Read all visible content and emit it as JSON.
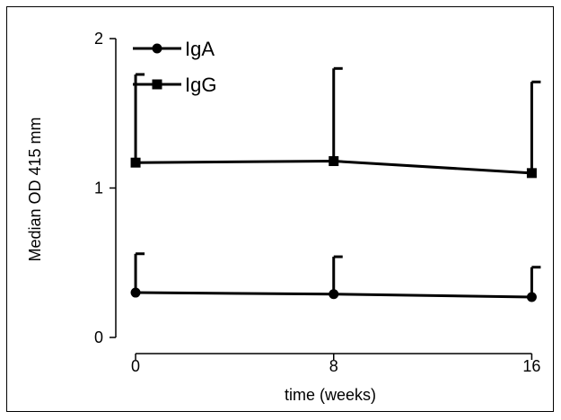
{
  "chart_data": {
    "type": "line",
    "xlabel": "time (weeks)",
    "ylabel": "Median OD 415 mm",
    "x": [
      0,
      8,
      16
    ],
    "xticks": [
      "0",
      "8",
      "16"
    ],
    "yticks": [
      "0",
      "1",
      "2"
    ],
    "xlim": [
      -0.8,
      17.0
    ],
    "ylim": [
      0,
      2
    ],
    "grid": false,
    "legend": "top-left",
    "series": [
      {
        "name": "IgA",
        "marker": "circle",
        "values": [
          0.3,
          0.29,
          0.27
        ],
        "error_upper": [
          0.56,
          0.54,
          0.47
        ]
      },
      {
        "name": "IgG",
        "marker": "square",
        "values": [
          1.17,
          1.18,
          1.1
        ],
        "error_upper": [
          1.76,
          1.8,
          1.71
        ]
      }
    ]
  }
}
